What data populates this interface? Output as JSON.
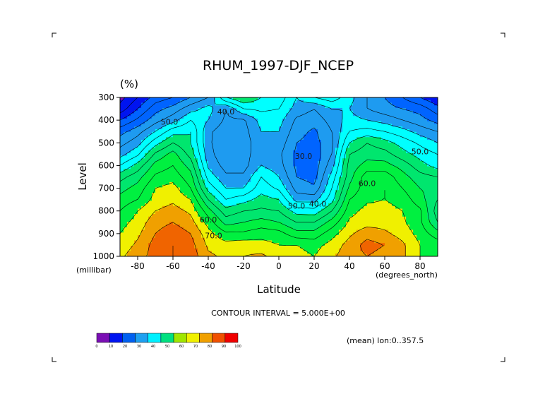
{
  "chart_data": {
    "type": "heatmap",
    "title": "RHUM_1997-DJF_NCEP",
    "units": "(%)",
    "xlabel": "Latitude",
    "x_unit": "(degrees_north)",
    "ylabel": "Level",
    "y_unit": "(millibar)",
    "xlim": [
      -90,
      90
    ],
    "ylim": [
      1000,
      300
    ],
    "x_ticks": [
      -80,
      -60,
      -40,
      -20,
      0,
      20,
      40,
      60,
      80
    ],
    "y_ticks": [
      300,
      400,
      500,
      600,
      700,
      800,
      900,
      1000
    ],
    "contour_interval_text": "CONTOUR INTERVAL = 5.000E+00",
    "contour_interval": 5,
    "mean_text": "(mean) lon:0..357.5",
    "contour_labels": [
      {
        "text": "40.0",
        "lat": -30,
        "level": 375
      },
      {
        "text": "50.0",
        "lat": -62,
        "level": 420
      },
      {
        "text": "30.0",
        "lat": 14,
        "level": 570
      },
      {
        "text": "50.0",
        "lat": 80,
        "level": 550
      },
      {
        "text": "60.0",
        "lat": 50,
        "level": 690
      },
      {
        "text": "50.0",
        "lat": 10,
        "level": 790
      },
      {
        "text": "40.0",
        "lat": 22,
        "level": 780
      },
      {
        "text": "60.0",
        "lat": -40,
        "level": 850
      },
      {
        "text": "70.0",
        "lat": -37,
        "level": 920
      }
    ],
    "grid_lat": [
      -90,
      -80,
      -70,
      -60,
      -50,
      -40,
      -30,
      -20,
      -10,
      0,
      10,
      20,
      30,
      40,
      50,
      60,
      70,
      80,
      90
    ],
    "grid_levels": [
      300,
      350,
      400,
      450,
      500,
      550,
      600,
      650,
      700,
      750,
      800,
      850,
      900,
      950,
      1000
    ],
    "values": [
      [
        8,
        15,
        22,
        25,
        30,
        35,
        50,
        55,
        50,
        48,
        40,
        45,
        48,
        42,
        35,
        30,
        25,
        20,
        15
      ],
      [
        12,
        20,
        28,
        32,
        38,
        42,
        35,
        45,
        46,
        45,
        38,
        35,
        40,
        40,
        35,
        32,
        30,
        28,
        22
      ],
      [
        20,
        26,
        33,
        38,
        45,
        40,
        34,
        34,
        42,
        42,
        34,
        32,
        37,
        42,
        40,
        38,
        35,
        32,
        28
      ],
      [
        28,
        33,
        40,
        48,
        50,
        36,
        32,
        33,
        40,
        40,
        32,
        29,
        35,
        45,
        47,
        45,
        42,
        38,
        35
      ],
      [
        33,
        38,
        48,
        55,
        50,
        36,
        31,
        32,
        39,
        38,
        30,
        28,
        34,
        50,
        55,
        52,
        48,
        44,
        40
      ],
      [
        38,
        44,
        56,
        62,
        53,
        37,
        31,
        33,
        38,
        36,
        29,
        27,
        35,
        55,
        58,
        57,
        52,
        48,
        45
      ],
      [
        45,
        52,
        62,
        65,
        58,
        39,
        33,
        33,
        40,
        37,
        29,
        27,
        38,
        57,
        62,
        62,
        58,
        52,
        48
      ],
      [
        53,
        58,
        66,
        68,
        62,
        43,
        36,
        36,
        45,
        40,
        30,
        28,
        42,
        58,
        68,
        68,
        62,
        57,
        55
      ],
      [
        58,
        62,
        70,
        72,
        65,
        48,
        40,
        40,
        48,
        44,
        33,
        31,
        45,
        61,
        68,
        70,
        65,
        60,
        58
      ],
      [
        62,
        65,
        72,
        74,
        70,
        55,
        45,
        48,
        52,
        50,
        38,
        38,
        48,
        65,
        69,
        70,
        68,
        62,
        55
      ],
      [
        65,
        70,
        75,
        77,
        74,
        62,
        52,
        55,
        56,
        55,
        48,
        47,
        55,
        68,
        72,
        72,
        70,
        66,
        52
      ],
      [
        68,
        72,
        78,
        80,
        77,
        68,
        58,
        60,
        62,
        60,
        55,
        55,
        62,
        71,
        73,
        73,
        71,
        66,
        55
      ],
      [
        70,
        74,
        80,
        83,
        80,
        72,
        66,
        66,
        68,
        67,
        62,
        62,
        68,
        74,
        78,
        76,
        73,
        68,
        62
      ],
      [
        72,
        76,
        82,
        85,
        82,
        74,
        72,
        73,
        72,
        70,
        70,
        68,
        72,
        77,
        82,
        80,
        76,
        70,
        68
      ],
      [
        74,
        78,
        82,
        85,
        83,
        76,
        74,
        75,
        76,
        73,
        72,
        70,
        74,
        78,
        80,
        78,
        76,
        70,
        68
      ]
    ],
    "colorbar": {
      "levels": [
        0,
        10,
        20,
        30,
        40,
        50,
        60,
        70,
        80,
        90,
        100
      ],
      "colors": [
        "#7a0fb4",
        "#0014f0",
        "#0060f0",
        "#1ea0f0",
        "#00f0ff",
        "#00e080",
        "#a0e600",
        "#f0f000",
        "#f0a000",
        "#f05000",
        "#f00000"
      ]
    },
    "fill_bands": [
      {
        "from": 0,
        "to": 10,
        "color": "#7a0fb4"
      },
      {
        "from": 10,
        "to": 20,
        "color": "#0014f0"
      },
      {
        "from": 20,
        "to": 30,
        "color": "#0064ff"
      },
      {
        "from": 30,
        "to": 40,
        "color": "#1e9bf0"
      },
      {
        "from": 40,
        "to": 50,
        "color": "#00ffff"
      },
      {
        "from": 50,
        "to": 60,
        "color": "#00e66e"
      },
      {
        "from": 60,
        "to": 70,
        "color": "#00f040"
      },
      {
        "from": 70,
        "to": 75,
        "color": "#f0f000"
      },
      {
        "from": 75,
        "to": 80,
        "color": "#f0a000"
      },
      {
        "from": 80,
        "to": 85,
        "color": "#f06400"
      },
      {
        "from": 85,
        "to": 100,
        "color": "#f00000"
      }
    ]
  }
}
